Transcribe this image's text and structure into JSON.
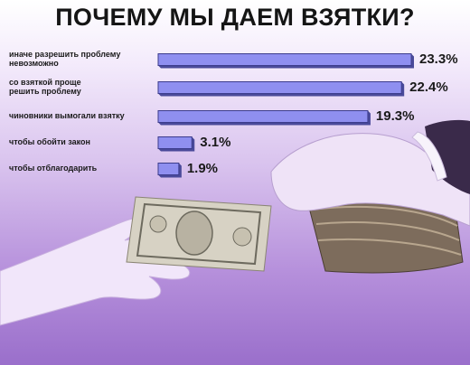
{
  "chart_data": {
    "type": "bar",
    "orientation": "horizontal",
    "title": "ПОЧЕМУ МЫ ДАЕМ ВЗЯТКИ?",
    "categories": [
      "иначе разрешить проблему невозможно",
      "со взяткой проще решить проблему",
      "чиновники вымогали взятку",
      "чтобы обойти закон",
      "чтобы отблагодарить"
    ],
    "category_lines": [
      [
        "иначе разрешить проблему",
        "невозможно"
      ],
      [
        "со взяткой проще",
        "решить проблему"
      ],
      [
        "чиновники вымогали взятку"
      ],
      [
        "чтобы обойти закон"
      ],
      [
        "чтобы отблагодарить"
      ]
    ],
    "values": [
      23.3,
      22.4,
      19.3,
      3.1,
      1.9
    ],
    "value_labels": [
      "23.3%",
      "22.4%",
      "19.3%",
      "3.1%",
      "1.9%"
    ],
    "xlim": [
      0,
      23.3
    ],
    "bar_color": "#8f8ff0",
    "bar_side_color": "#4a4a9a",
    "grid": false,
    "legend": "none"
  },
  "colors": {
    "background_top": "#ffffff",
    "background_bottom": "#9a6fcb",
    "hands_tint": "#f1e6fa",
    "sleeve": "#3a2a4a"
  }
}
